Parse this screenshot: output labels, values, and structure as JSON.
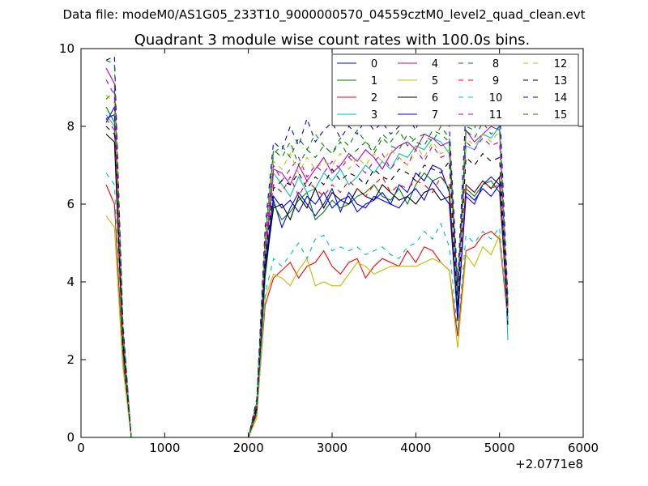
{
  "suptitle": "Data file: modeM0/AS1G05_233T10_9000000570_04559cztM0_level2_quad_clean.evt",
  "chart_data": {
    "type": "line",
    "title": "Quadrant 3 module wise count rates with 100.0s bins.",
    "xlabel": "",
    "ylabel": "",
    "x_offset_label": "+2.0771e8",
    "xlim": [
      0,
      6000
    ],
    "ylim": [
      0,
      10
    ],
    "xticks": [
      "0",
      "1000",
      "2000",
      "3000",
      "4000",
      "5000",
      "6000"
    ],
    "yticks": [
      "0",
      "2",
      "4",
      "6",
      "8",
      "10"
    ],
    "grid": false,
    "legend_position": "top-right",
    "x": [
      300,
      400,
      500,
      600,
      700,
      800,
      900,
      1000,
      1100,
      1200,
      1300,
      1400,
      1500,
      1600,
      1700,
      1800,
      1900,
      2000,
      2100,
      2200,
      2300,
      2400,
      2500,
      2600,
      2700,
      2800,
      2900,
      3000,
      3100,
      3200,
      3300,
      3400,
      3500,
      3600,
      3700,
      3800,
      3900,
      4000,
      4100,
      4200,
      4300,
      4400,
      4500,
      4600,
      4700,
      4800,
      4900,
      5000,
      5100
    ],
    "series": [
      {
        "name": "0",
        "color": "#0000ff",
        "dash": "solid",
        "values": [
          8.1,
          8.5,
          2.6,
          0,
          0,
          0,
          0,
          0,
          0,
          0,
          0,
          0,
          0,
          0,
          0,
          0,
          0,
          0,
          0.8,
          4.2,
          6.1,
          5.4,
          5.9,
          6.3,
          6.0,
          5.7,
          6.0,
          6.4,
          5.8,
          6.3,
          6.0,
          5.9,
          6.2,
          6.1,
          6.0,
          6.5,
          6.3,
          6.8,
          6.6,
          7.0,
          6.9,
          6.3,
          3.2,
          6.2,
          6.0,
          6.5,
          6.7,
          6.5,
          3.4
        ]
      },
      {
        "name": "1",
        "color": "#008000",
        "dash": "solid",
        "values": [
          8.5,
          8.1,
          2.4,
          0,
          0,
          0,
          0,
          0,
          0,
          0,
          0,
          0,
          0,
          0,
          0,
          0,
          0,
          0,
          0.7,
          4.1,
          6.0,
          5.6,
          5.8,
          6.1,
          6.3,
          5.6,
          5.8,
          6.1,
          5.9,
          6.0,
          6.2,
          6.3,
          6.5,
          6.2,
          6.1,
          6.4,
          6.0,
          6.5,
          6.8,
          6.6,
          6.7,
          6.4,
          3.1,
          6.4,
          6.2,
          6.5,
          6.6,
          6.3,
          3.2
        ]
      },
      {
        "name": "2",
        "color": "#ff0000",
        "dash": "solid",
        "values": [
          6.5,
          6.0,
          2.0,
          0,
          0,
          0,
          0,
          0,
          0,
          0,
          0,
          0,
          0,
          0,
          0,
          0,
          0,
          0,
          0.6,
          3.4,
          4.1,
          4.3,
          4.5,
          4.1,
          4.4,
          4.5,
          4.8,
          4.4,
          4.2,
          4.5,
          4.6,
          4.1,
          4.4,
          4.6,
          4.5,
          4.4,
          4.8,
          4.5,
          4.9,
          4.8,
          4.5,
          4.3,
          2.6,
          4.8,
          4.9,
          5.2,
          5.3,
          5.1,
          3.0
        ]
      },
      {
        "name": "3",
        "color": "#00bfbf",
        "dash": "solid",
        "values": [
          8.3,
          8.0,
          2.5,
          0,
          0,
          0,
          0,
          0,
          0,
          0,
          0,
          0,
          0,
          0,
          0,
          0,
          0,
          0,
          0.8,
          4.5,
          6.8,
          6.5,
          6.2,
          6.7,
          6.3,
          6.4,
          6.8,
          6.6,
          6.9,
          6.5,
          6.7,
          7.0,
          6.8,
          7.1,
          6.9,
          7.3,
          7.2,
          7.5,
          7.4,
          7.7,
          7.6,
          7.3,
          3.5,
          7.5,
          7.4,
          7.8,
          7.7,
          8.0,
          2.5
        ]
      },
      {
        "name": "4",
        "color": "#bf00bf",
        "dash": "solid",
        "values": [
          9.5,
          9.1,
          2.8,
          0,
          0,
          0,
          0,
          0,
          0,
          0,
          0,
          0,
          0,
          0,
          0,
          0,
          0,
          0,
          0.9,
          4.8,
          6.9,
          6.8,
          6.5,
          7.0,
          6.6,
          6.9,
          7.2,
          6.8,
          7.0,
          7.3,
          7.1,
          7.4,
          7.2,
          6.9,
          7.3,
          7.5,
          7.6,
          7.4,
          7.8,
          7.7,
          7.5,
          7.6,
          3.7,
          7.9,
          7.6,
          7.8,
          8.0,
          7.9,
          3.3
        ]
      },
      {
        "name": "5",
        "color": "#bfbf00",
        "dash": "solid",
        "values": [
          5.7,
          5.4,
          1.8,
          0,
          0,
          0,
          0,
          0,
          0,
          0,
          0,
          0,
          0,
          0,
          0,
          0,
          0,
          0,
          0.5,
          3.6,
          4.2,
          4.1,
          3.9,
          4.3,
          4.6,
          3.9,
          4.0,
          3.9,
          3.9,
          4.2,
          4.5,
          4.4,
          4.2,
          4.3,
          4.4,
          4.4,
          4.4,
          4.4,
          4.5,
          4.6,
          4.5,
          4.3,
          2.3,
          4.7,
          4.4,
          4.9,
          4.7,
          5.2,
          3.1
        ]
      },
      {
        "name": "6",
        "color": "#000000",
        "dash": "solid",
        "values": [
          7.8,
          7.6,
          2.3,
          0,
          0,
          0,
          0,
          0,
          0,
          0,
          0,
          0,
          0,
          0,
          0,
          0,
          0,
          0,
          0.7,
          4.3,
          5.9,
          6.0,
          5.6,
          6.2,
          5.9,
          6.4,
          5.9,
          6.3,
          6.1,
          6.0,
          6.4,
          6.2,
          6.1,
          6.5,
          6.3,
          6.1,
          6.2,
          6.0,
          6.3,
          6.4,
          6.1,
          6.2,
          3.0,
          6.5,
          6.3,
          6.6,
          6.4,
          6.7,
          2.9
        ]
      },
      {
        "name": "7",
        "color": "#0000ff",
        "dash": "solid",
        "values": [
          8.2,
          8.3,
          2.6,
          0,
          0,
          0,
          0,
          0,
          0,
          0,
          0,
          0,
          0,
          0,
          0,
          0,
          0,
          0,
          0.8,
          4.4,
          6.2,
          5.9,
          6.1,
          5.8,
          6.2,
          6.0,
          6.3,
          5.9,
          6.1,
          6.2,
          5.8,
          6.0,
          6.1,
          6.3,
          6.0,
          5.9,
          6.2,
          6.4,
          6.1,
          6.6,
          6.3,
          6.0,
          3.1,
          6.3,
          6.1,
          6.4,
          6.2,
          6.5,
          3.0
        ]
      },
      {
        "name": "8",
        "color": "#008000",
        "dash": "dashed",
        "values": [
          8.7,
          8.9,
          2.8,
          0,
          0,
          0,
          0,
          0,
          0,
          0,
          0,
          0,
          0,
          0,
          0,
          0,
          0,
          0,
          0.9,
          5.0,
          7.4,
          7.2,
          7.6,
          7.0,
          7.4,
          7.2,
          7.5,
          7.3,
          7.6,
          7.2,
          7.4,
          7.6,
          7.3,
          7.7,
          7.5,
          7.4,
          7.8,
          7.6,
          7.5,
          7.9,
          7.8,
          7.6,
          3.8,
          8.0,
          7.9,
          9.1,
          8.5,
          8.2,
          3.4
        ]
      },
      {
        "name": "9",
        "color": "#ff0000",
        "dash": "dashed",
        "values": [
          8.2,
          7.9,
          2.6,
          0,
          0,
          0,
          0,
          0,
          0,
          0,
          0,
          0,
          0,
          0,
          0,
          0,
          0,
          0,
          0.8,
          4.8,
          6.5,
          6.3,
          6.7,
          6.2,
          6.6,
          6.4,
          6.2,
          6.5,
          6.3,
          6.6,
          6.4,
          6.2,
          6.5,
          6.7,
          6.3,
          6.5,
          6.4,
          6.6,
          6.5,
          6.3,
          6.7,
          6.5,
          3.4,
          6.5,
          6.3,
          6.6,
          6.4,
          6.5,
          3.2
        ]
      },
      {
        "name": "10",
        "color": "#00bfbf",
        "dash": "dashed",
        "values": [
          6.8,
          6.5,
          2.1,
          0,
          0,
          0,
          0,
          0,
          0,
          0,
          0,
          0,
          0,
          0,
          0,
          0,
          0,
          0,
          0.6,
          3.7,
          4.6,
          4.4,
          4.7,
          5.0,
          4.6,
          5.1,
          5.2,
          4.8,
          4.9,
          4.8,
          4.9,
          4.7,
          4.8,
          4.9,
          4.7,
          4.6,
          4.9,
          5.0,
          5.3,
          5.1,
          5.5,
          4.9,
          2.7,
          5.2,
          5.0,
          5.3,
          5.1,
          5.4,
          3.0
        ]
      },
      {
        "name": "11",
        "color": "#bf00bf",
        "dash": "dashed",
        "values": [
          9.2,
          8.8,
          2.8,
          0,
          0,
          0,
          0,
          0,
          0,
          0,
          0,
          0,
          0,
          0,
          0,
          0,
          0,
          0,
          0.9,
          5.1,
          7.0,
          6.6,
          6.9,
          7.2,
          6.7,
          7.0,
          6.8,
          7.1,
          6.9,
          7.2,
          7.0,
          6.8,
          7.1,
          7.3,
          6.9,
          7.2,
          7.0,
          7.4,
          7.1,
          7.5,
          7.2,
          7.3,
          3.6,
          7.6,
          7.4,
          7.7,
          7.5,
          7.6,
          3.4
        ]
      },
      {
        "name": "12",
        "color": "#bfbf00",
        "dash": "dashed",
        "values": [
          8.8,
          8.6,
          2.7,
          0,
          0,
          0,
          0,
          0,
          0,
          0,
          0,
          0,
          0,
          0,
          0,
          0,
          0,
          0,
          0.8,
          4.9,
          7.1,
          6.9,
          7.3,
          6.8,
          7.2,
          6.9,
          7.1,
          7.0,
          7.3,
          6.9,
          7.2,
          7.0,
          7.3,
          7.1,
          7.4,
          7.2,
          7.0,
          7.5,
          7.2,
          7.6,
          7.3,
          7.4,
          3.5,
          7.7,
          7.5,
          7.8,
          7.6,
          7.9,
          3.3
        ]
      },
      {
        "name": "13",
        "color": "#000000",
        "dash": "dashed",
        "values": [
          8.0,
          7.8,
          2.5,
          0,
          0,
          0,
          0,
          0,
          0,
          0,
          0,
          0,
          0,
          0,
          0,
          0,
          0,
          0,
          0.8,
          4.6,
          6.4,
          6.6,
          6.5,
          6.8,
          6.4,
          6.7,
          6.5,
          6.9,
          6.6,
          6.8,
          6.7,
          6.5,
          6.9,
          6.7,
          6.6,
          6.9,
          6.8,
          6.6,
          7.0,
          6.9,
          6.8,
          7.1,
          3.4,
          7.2,
          7.0,
          7.3,
          7.1,
          7.2,
          3.1
        ]
      },
      {
        "name": "14",
        "color": "#0000ff",
        "dash": "dashed",
        "values": [
          9.7,
          9.8,
          3.0,
          0,
          0,
          0,
          0,
          0,
          0,
          0,
          0,
          0,
          0,
          0,
          0,
          0,
          0,
          0,
          1.0,
          5.4,
          7.6,
          7.4,
          8.0,
          7.5,
          8.2,
          7.6,
          7.9,
          8.1,
          7.7,
          8.0,
          7.8,
          8.2,
          7.9,
          8.1,
          7.8,
          8.0,
          8.3,
          7.9,
          8.6,
          8.2,
          8.4,
          8.0,
          4.0,
          8.5,
          8.1,
          8.4,
          8.2,
          8.6,
          3.6
        ]
      },
      {
        "name": "15",
        "color": "#008000",
        "dash": "dashed",
        "values": [
          9.7,
          9.6,
          2.9,
          0,
          0,
          0,
          0,
          0,
          0,
          0,
          0,
          0,
          0,
          0,
          0,
          0,
          0,
          0,
          0.9,
          5.2,
          7.3,
          7.5,
          7.2,
          7.7,
          7.4,
          7.8,
          7.5,
          7.3,
          7.7,
          7.5,
          7.9,
          7.6,
          7.4,
          7.8,
          7.6,
          7.9,
          7.5,
          7.7,
          7.8,
          7.6,
          8.0,
          7.7,
          3.7,
          7.9,
          7.7,
          8.1,
          7.8,
          8.0,
          3.5
        ]
      }
    ]
  }
}
